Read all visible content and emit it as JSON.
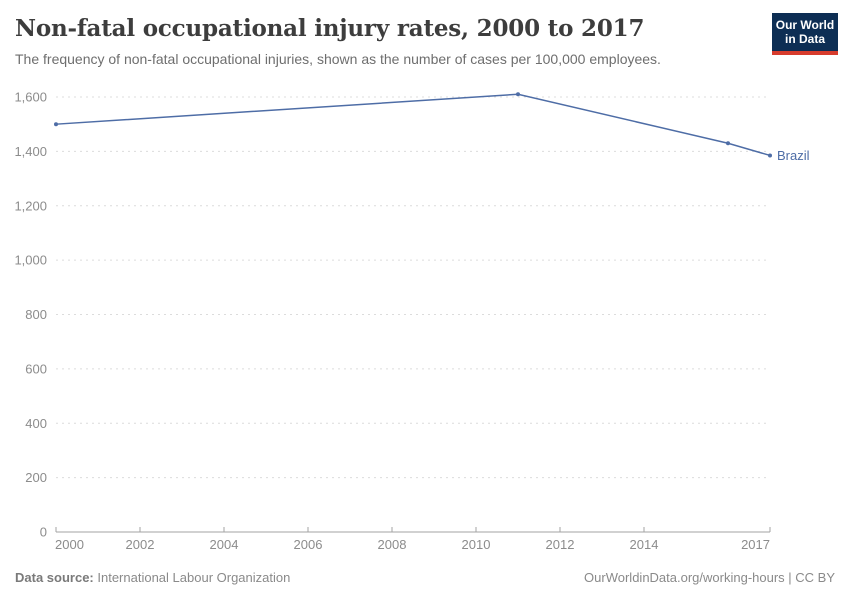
{
  "header": {
    "title": "Non-fatal occupational injury rates, 2000 to 2017",
    "subtitle": "The frequency of non-fatal occupational injuries, shown as the number of cases per 100,000 employees."
  },
  "logo": {
    "line1": "Our World",
    "line2": "in Data",
    "bg_color": "#0d2e54",
    "bar_color": "#d73c2d"
  },
  "chart_data": {
    "type": "line",
    "title": "Non-fatal occupational injury rates, 2000 to 2017",
    "xlabel": "",
    "ylabel": "",
    "xlim": [
      2000,
      2017
    ],
    "ylim": [
      0,
      1600
    ],
    "x_ticks": [
      2000,
      2002,
      2004,
      2006,
      2008,
      2010,
      2012,
      2014,
      2017
    ],
    "y_ticks": [
      0,
      200,
      400,
      600,
      800,
      1000,
      1200,
      1400,
      1600
    ],
    "grid": "horizontal-dashed",
    "legend_position": "end-of-line",
    "series": [
      {
        "name": "Brazil",
        "color": "#4e6da6",
        "x": [
          2000,
          2011,
          2016,
          2017
        ],
        "values": [
          1500,
          1610,
          1430,
          1385
        ]
      }
    ]
  },
  "footer": {
    "source_label": "Data source:",
    "source_value": "International Labour Organization",
    "attribution": "OurWorldinData.org/working-hours | CC BY"
  },
  "colors": {
    "axis": "#a3a3a3",
    "gridline": "#dcdcdc",
    "tick_label": "#8c8c8c",
    "title": "#3d3d3d",
    "subtitle": "#6e6e6e"
  }
}
